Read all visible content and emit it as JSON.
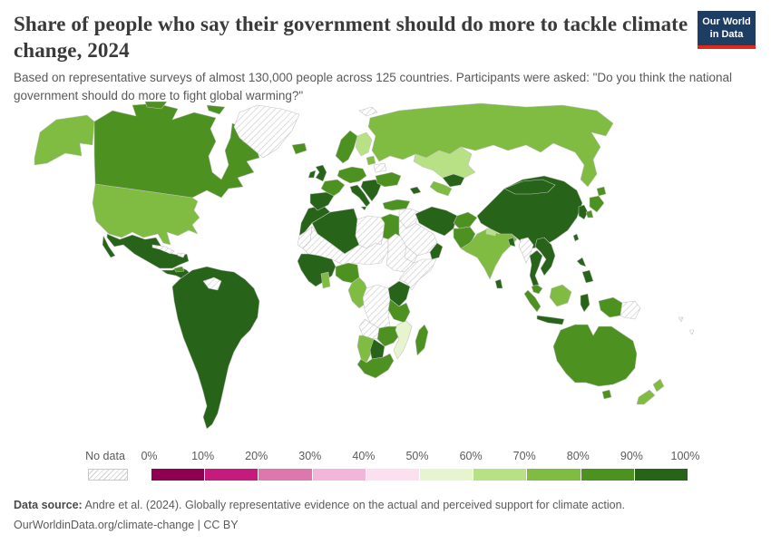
{
  "header": {
    "title": "Share of people who say their government should do more to tackle climate change, 2024",
    "subtitle": "Based on representative surveys of almost 130,000 people across 125 countries. Participants were asked: \"Do you think the national government should do more to fight global warming?\""
  },
  "logo": {
    "line1": "Our World",
    "line2": "in Data",
    "bg_color": "#1d3d63",
    "accent_color": "#dc2a1c"
  },
  "legend": {
    "no_data_label": "No data",
    "ticks": [
      "0%",
      "10%",
      "20%",
      "30%",
      "40%",
      "50%",
      "60%",
      "70%",
      "80%",
      "90%",
      "100%"
    ],
    "bins": [
      {
        "range": "0-10%",
        "color": "#8e0152"
      },
      {
        "range": "10-20%",
        "color": "#c51b7d"
      },
      {
        "range": "20-30%",
        "color": "#de77ae"
      },
      {
        "range": "30-40%",
        "color": "#f1b6da"
      },
      {
        "range": "40-50%",
        "color": "#fde0ef"
      },
      {
        "range": "50-60%",
        "color": "#e6f5d0"
      },
      {
        "range": "60-70%",
        "color": "#b8e186"
      },
      {
        "range": "70-80%",
        "color": "#7fbc41"
      },
      {
        "range": "80-90%",
        "color": "#4d9221"
      },
      {
        "range": "90-100%",
        "color": "#276419"
      }
    ]
  },
  "footer": {
    "source_label": "Data source:",
    "source_text": " Andre et al. (2024). Globally representative evidence on the actual and perceived support for climate action.",
    "link_line": "OurWorldinData.org/climate-change | CC BY"
  },
  "chart_data": {
    "type": "choropleth",
    "title": "Share of people who say their government should do more to tackle climate change",
    "year": "2024",
    "unit": "% of respondents",
    "color_scale": {
      "scheme": "PiYG (diverging pink-green)",
      "min": "0%",
      "max": "100%",
      "bin_width": "10%",
      "no_data_pattern": "gray diagonal hatch"
    },
    "regions": [
      {
        "id": "alaska",
        "name": "United States (Alaska)",
        "bin": "70-80%"
      },
      {
        "id": "canada",
        "name": "Canada",
        "bin": "80-90%"
      },
      {
        "id": "greenland",
        "name": "Greenland",
        "bin": "no-data"
      },
      {
        "id": "iceland",
        "name": "Iceland",
        "bin": "80-90%"
      },
      {
        "id": "svalbard",
        "name": "Svalbard",
        "bin": "no-data"
      },
      {
        "id": "usa",
        "name": "United States",
        "bin": "70-80%"
      },
      {
        "id": "mexico",
        "name": "Mexico",
        "bin": "90-100%"
      },
      {
        "id": "central-america",
        "name": "Central America",
        "bin": "90-100%"
      },
      {
        "id": "honduras",
        "name": "Honduras",
        "bin": "80-90%"
      },
      {
        "id": "cuba",
        "name": "Cuba",
        "bin": "no-data"
      },
      {
        "id": "hispaniola",
        "name": "Hispaniola",
        "bin": "no-data"
      },
      {
        "id": "south-america",
        "name": "South America (Brazil, Argentina, Peru, Chile, Colombia, Venezuela)",
        "bin": "90-100%"
      },
      {
        "id": "guyanas",
        "name": "Guyana and Suriname",
        "bin": "no-data"
      },
      {
        "id": "morocco",
        "name": "Morocco",
        "bin": "90-100%"
      },
      {
        "id": "western-sahara",
        "name": "Western Sahara",
        "bin": "no-data"
      },
      {
        "id": "algeria",
        "name": "Algeria and Tunisia",
        "bin": "90-100%"
      },
      {
        "id": "libya",
        "name": "Libya",
        "bin": "no-data"
      },
      {
        "id": "egypt",
        "name": "Egypt",
        "bin": "80-90%"
      },
      {
        "id": "sahel",
        "name": "Mauritania, Mali, Niger, Chad",
        "bin": "no-data"
      },
      {
        "id": "sudan",
        "name": "Sudan",
        "bin": "no-data"
      },
      {
        "id": "horn-of-africa",
        "name": "Ethiopia and Somalia",
        "bin": "no-data"
      },
      {
        "id": "west-africa",
        "name": "West Africa (Senegal to Ivory Coast)",
        "bin": "90-100%"
      },
      {
        "id": "ghana",
        "name": "Ghana",
        "bin": "70-80%"
      },
      {
        "id": "nigeria",
        "name": "Nigeria",
        "bin": "80-90%"
      },
      {
        "id": "central-africa",
        "name": "Cameroon, Gabon, Congo",
        "bin": "70-80%"
      },
      {
        "id": "drc",
        "name": "Democratic Republic of Congo",
        "bin": "no-data"
      },
      {
        "id": "kenya",
        "name": "Kenya and Uganda",
        "bin": "90-100%"
      },
      {
        "id": "tanzania",
        "name": "Tanzania",
        "bin": "80-90%"
      },
      {
        "id": "angola",
        "name": "Angola",
        "bin": "no-data"
      },
      {
        "id": "zambia-zimbabwe",
        "name": "Zambia and Zimbabwe",
        "bin": "80-90%"
      },
      {
        "id": "malawi-mozambique",
        "name": "Malawi and Mozambique",
        "bin": "50-60%"
      },
      {
        "id": "namibia",
        "name": "Namibia",
        "bin": "70-80%"
      },
      {
        "id": "botswana",
        "name": "Botswana",
        "bin": "90-100%"
      },
      {
        "id": "south-africa",
        "name": "South Africa",
        "bin": "80-90%"
      },
      {
        "id": "madagascar",
        "name": "Madagascar",
        "bin": "80-90%"
      },
      {
        "id": "iberia",
        "name": "Spain and Portugal",
        "bin": "90-100%"
      },
      {
        "id": "france",
        "name": "France",
        "bin": "80-90%"
      },
      {
        "id": "uk",
        "name": "United Kingdom",
        "bin": "90-100%"
      },
      {
        "id": "ireland",
        "name": "Ireland",
        "bin": "90-100%"
      },
      {
        "id": "central-europe",
        "name": "Germany and Central Europe",
        "bin": "80-90%"
      },
      {
        "id": "italy",
        "name": "Italy",
        "bin": "90-100%"
      },
      {
        "id": "balkans",
        "name": "Balkans, Romania, Greece",
        "bin": "90-100%"
      },
      {
        "id": "nordic",
        "name": "Norway and Sweden",
        "bin": "80-90%"
      },
      {
        "id": "finland",
        "name": "Finland",
        "bin": "60-70%"
      },
      {
        "id": "baltics",
        "name": "Baltic states",
        "bin": "70-80%"
      },
      {
        "id": "belarus",
        "name": "Belarus",
        "bin": "no-data"
      },
      {
        "id": "ukraine",
        "name": "Ukraine",
        "bin": "80-90%"
      },
      {
        "id": "turkey",
        "name": "Turkey",
        "bin": "80-90%"
      },
      {
        "id": "russia",
        "name": "Russia",
        "bin": "70-80%"
      },
      {
        "id": "kazakhstan",
        "name": "Kazakhstan",
        "bin": "60-70%"
      },
      {
        "id": "uzbekistan",
        "name": "Uzbekistan",
        "bin": "90-100%"
      },
      {
        "id": "turkmenistan",
        "name": "Turkmenistan",
        "bin": "70-80%"
      },
      {
        "id": "caucasus",
        "name": "Caucasus",
        "bin": "90-100%"
      },
      {
        "id": "syria-iraq",
        "name": "Syria and Iraq",
        "bin": "no-data"
      },
      {
        "id": "saudi-arabia",
        "name": "Saudi Arabia",
        "bin": "no-data"
      },
      {
        "id": "yemen",
        "name": "Yemen",
        "bin": "no-data"
      },
      {
        "id": "oman-uae",
        "name": "Oman and UAE",
        "bin": "90-100%"
      },
      {
        "id": "iran",
        "name": "Iran",
        "bin": "90-100%"
      },
      {
        "id": "afghanistan",
        "name": "Afghanistan",
        "bin": "80-90%"
      },
      {
        "id": "pakistan",
        "name": "Pakistan",
        "bin": "80-90%"
      },
      {
        "id": "india",
        "name": "India",
        "bin": "70-80%"
      },
      {
        "id": "nepal",
        "name": "Nepal",
        "bin": "60-70%"
      },
      {
        "id": "bangladesh",
        "name": "Bangladesh",
        "bin": "90-100%"
      },
      {
        "id": "sri-lanka",
        "name": "Sri Lanka",
        "bin": "90-100%"
      },
      {
        "id": "china",
        "name": "China",
        "bin": "90-100%"
      },
      {
        "id": "mongolia",
        "name": "Mongolia",
        "bin": "90-100%"
      },
      {
        "id": "korea",
        "name": "South Korea",
        "bin": "90-100%"
      },
      {
        "id": "japan",
        "name": "Japan",
        "bin": "80-90%"
      },
      {
        "id": "taiwan",
        "name": "Taiwan",
        "bin": "90-100%"
      },
      {
        "id": "myanmar",
        "name": "Myanmar",
        "bin": "no-data"
      },
      {
        "id": "thailand",
        "name": "Thailand",
        "bin": "90-100%"
      },
      {
        "id": "indochina",
        "name": "Vietnam, Laos, Cambodia",
        "bin": "90-100%"
      },
      {
        "id": "malaysia",
        "name": "Malaysia",
        "bin": "80-90%"
      },
      {
        "id": "sumatra",
        "name": "Indonesia (Sumatra)",
        "bin": "80-90%"
      },
      {
        "id": "java",
        "name": "Indonesia (Java)",
        "bin": "90-100%"
      },
      {
        "id": "borneo",
        "name": "Borneo",
        "bin": "70-80%"
      },
      {
        "id": "sulawesi",
        "name": "Indonesia (Sulawesi)",
        "bin": "90-100%"
      },
      {
        "id": "philippines",
        "name": "Philippines",
        "bin": "90-100%"
      },
      {
        "id": "west-new-guinea",
        "name": "Indonesia (Papua)",
        "bin": "80-90%"
      },
      {
        "id": "papua-new-guinea",
        "name": "Papua New Guinea",
        "bin": "no-data"
      },
      {
        "id": "australia",
        "name": "Australia",
        "bin": "80-90%"
      },
      {
        "id": "tasmania",
        "name": "Australia (Tasmania)",
        "bin": "80-90%"
      },
      {
        "id": "new-zealand",
        "name": "New Zealand",
        "bin": "70-80%"
      },
      {
        "id": "pacific-islands",
        "name": "Pacific islands",
        "bin": "no-data"
      }
    ]
  }
}
